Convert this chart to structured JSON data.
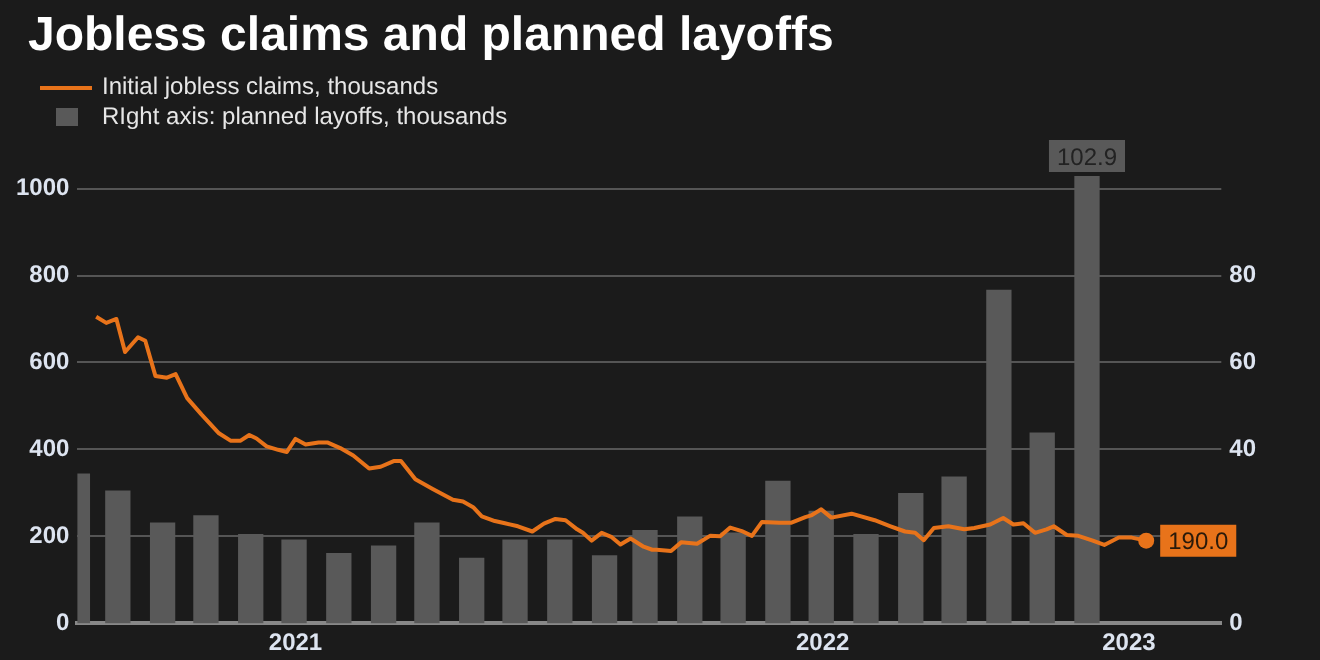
{
  "chart_data": {
    "type": "line",
    "title": "Jobless claims and planned layoffs",
    "legend": "top left",
    "grid": "y",
    "xlim": [
      "2021-02-01",
      "2023-04-04"
    ],
    "xticks": [
      {
        "value": "2021-07-02",
        "label": "2021"
      },
      {
        "value": "2022-07-02",
        "label": "2022"
      },
      {
        "value": "2023-01-30",
        "label": "2023"
      }
    ],
    "ylim": [
      0,
      1029
    ],
    "yticks": [
      0,
      200,
      400,
      600,
      800,
      1000
    ],
    "y2lim": [
      0,
      102.9
    ],
    "y2ticks": [
      0,
      40,
      60,
      80
    ],
    "series": [
      {
        "name": "Initial jobless claims, thousands",
        "color": "#e8731a",
        "x": [
          "2021-02-14",
          "2021-02-21",
          "2021-02-28",
          "2021-03-06",
          "2021-03-15",
          "2021-03-20",
          "2021-03-27",
          "2021-04-04",
          "2021-04-10",
          "2021-04-18",
          "2021-04-28",
          "2021-05-10",
          "2021-05-18",
          "2021-05-25",
          "2021-05-31",
          "2021-06-05",
          "2021-06-12",
          "2021-06-20",
          "2021-06-26",
          "2021-07-02",
          "2021-07-09",
          "2021-07-18",
          "2021-07-24",
          "2021-08-02",
          "2021-08-11",
          "2021-08-22",
          "2021-08-30",
          "2021-09-08",
          "2021-09-13",
          "2021-09-23",
          "2021-10-05",
          "2021-10-19",
          "2021-10-26",
          "2021-11-02",
          "2021-11-08",
          "2021-11-17",
          "2021-11-24",
          "2021-12-03",
          "2021-12-13",
          "2021-12-21",
          "2021-12-29",
          "2022-01-05",
          "2022-01-13",
          "2022-01-17",
          "2022-01-23",
          "2022-01-30",
          "2022-02-06",
          "2022-02-12",
          "2022-02-19",
          "2022-02-28",
          "2022-03-06",
          "2022-03-09",
          "2022-03-19",
          "2022-03-26",
          "2022-04-06",
          "2022-04-15",
          "2022-04-22",
          "2022-04-29",
          "2022-05-07",
          "2022-05-14",
          "2022-05-21",
          "2022-06-02",
          "2022-06-10",
          "2022-06-20",
          "2022-06-24",
          "2022-07-01",
          "2022-07-08",
          "2022-07-22",
          "2022-08-07",
          "2022-08-18",
          "2022-08-28",
          "2022-09-04",
          "2022-09-10",
          "2022-09-17",
          "2022-09-27",
          "2022-10-08",
          "2022-10-15",
          "2022-10-26",
          "2022-11-04",
          "2022-11-11",
          "2022-11-18",
          "2022-11-26",
          "2022-12-04",
          "2022-12-09",
          "2022-12-18",
          "2022-12-26",
          "2023-01-05",
          "2023-01-13",
          "2023-01-23",
          "2023-02-01",
          "2023-02-11"
        ],
        "values": [
          705,
          691,
          700,
          624,
          658,
          650,
          569,
          565,
          573,
          518,
          480,
          437,
          420,
          420,
          433,
          425,
          407,
          399,
          394,
          424,
          411,
          416,
          416,
          403,
          386,
          356,
          360,
          373,
          373,
          331,
          309,
          284,
          280,
          267,
          246,
          235,
          230,
          223,
          211,
          229,
          240,
          237,
          216,
          208,
          190,
          208,
          198,
          181,
          195,
          176,
          169,
          169,
          166,
          186,
          183,
          201,
          200,
          220,
          212,
          201,
          233,
          231,
          231,
          244,
          248,
          262,
          243,
          252,
          237,
          223,
          211,
          208,
          191,
          219,
          223,
          216,
          219,
          227,
          242,
          227,
          230,
          208,
          216,
          223,
          203,
          201,
          190,
          180,
          197,
          197,
          190
        ],
        "value_labels": [
          null,
          null,
          null,
          null,
          null,
          null,
          null,
          null,
          null,
          null,
          null,
          null,
          null,
          null,
          null,
          null,
          null,
          null,
          null,
          null,
          null,
          null,
          null,
          null,
          null,
          null,
          null,
          null,
          null,
          null,
          null,
          null,
          null,
          null,
          null,
          null,
          null,
          null,
          null,
          null,
          null,
          null,
          null,
          null,
          null,
          null,
          null,
          null,
          null,
          null,
          null,
          null,
          null,
          null,
          null,
          null,
          null,
          null,
          null,
          null,
          null,
          null,
          null,
          null,
          null,
          null,
          null,
          null,
          null,
          null,
          null,
          null,
          null,
          null,
          null,
          null,
          null,
          null,
          null,
          null,
          null,
          null,
          null,
          null,
          null,
          null,
          null,
          null,
          null,
          null,
          "190.0"
        ]
      },
      {
        "name": "RIght axis: planned layoffs, thousands",
        "type": "bar",
        "axis": "y2",
        "color": "#595959",
        "x": [
          "2021-02-01",
          "2021-03-01",
          "2021-04-01",
          "2021-05-01",
          "2021-06-01",
          "2021-07-01",
          "2021-08-01",
          "2021-09-01",
          "2021-10-01",
          "2021-11-01",
          "2021-12-01",
          "2022-01-01",
          "2022-02-01",
          "2022-03-01",
          "2022-04-01",
          "2022-05-01",
          "2022-06-01",
          "2022-07-01",
          "2022-08-01",
          "2022-09-01",
          "2022-10-01",
          "2022-11-01",
          "2022-12-01",
          "2023-01-01"
        ],
        "values": [
          34.3,
          30.4,
          23,
          24.7,
          20.4,
          19.1,
          16,
          17.7,
          23,
          14.9,
          19.1,
          19.1,
          15.5,
          21.3,
          24.4,
          20.7,
          32.6,
          25.7,
          20.4,
          29.8,
          33.6,
          76.6,
          43.7,
          102.9
        ],
        "value_labels": [
          null,
          null,
          null,
          null,
          null,
          null,
          null,
          null,
          null,
          null,
          null,
          null,
          null,
          null,
          null,
          null,
          null,
          null,
          null,
          null,
          null,
          null,
          null,
          "102.9"
        ]
      }
    ]
  }
}
